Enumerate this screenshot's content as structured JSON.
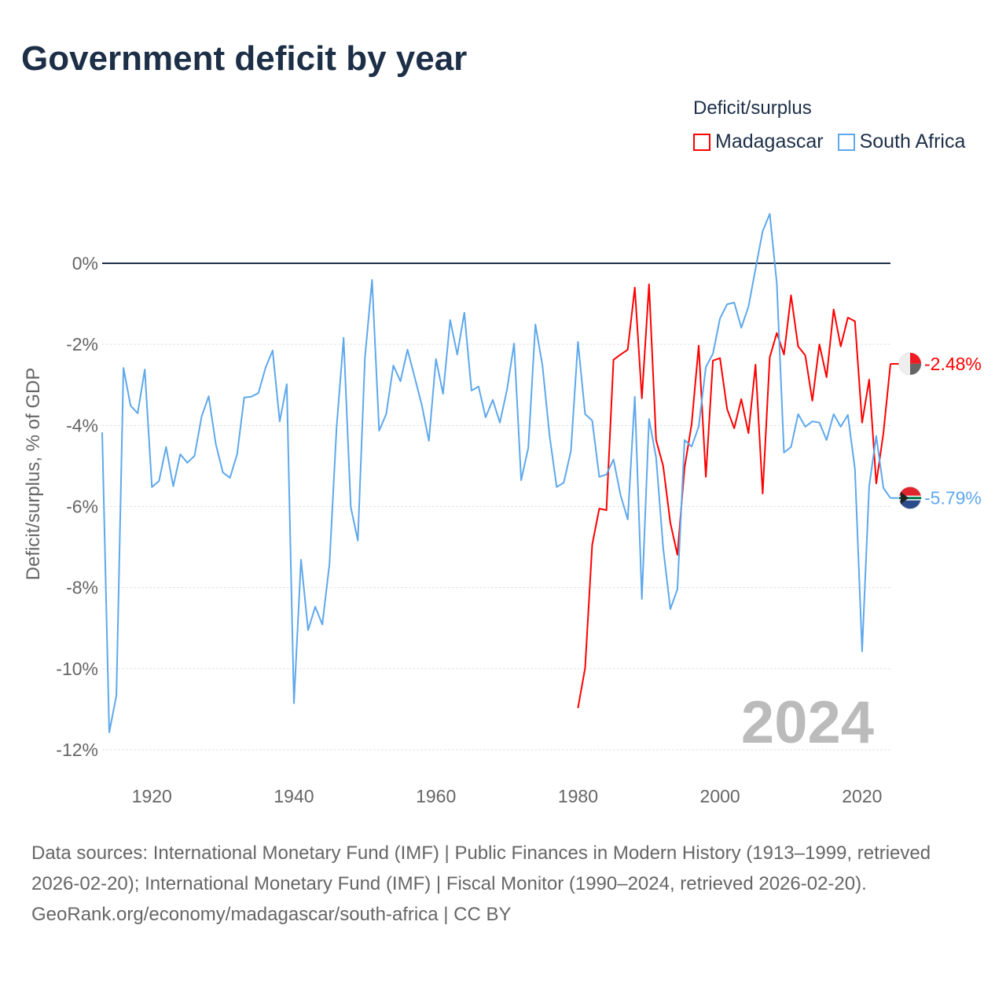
{
  "title": "Government deficit by year",
  "legend": {
    "title": "Deficit/surplus",
    "items": [
      {
        "name": "Madagascar",
        "color": "#ff0000"
      },
      {
        "name": "South Africa",
        "color": "#5ea8ec"
      }
    ]
  },
  "source": {
    "line1": "Data sources: International Monetary Fund (IMF) | Public Finances in Modern History (1913–1999, retrieved 2026-02-20); International Monetary Fund (IMF) | Fiscal Monitor (1990–2024, retrieved 2026-02-20).",
    "line2": "GeoRank.org/economy/madagascar/south-africa | CC BY"
  },
  "chart_data": {
    "type": "line",
    "title": "Government deficit by year",
    "xlabel": "",
    "ylabel": "Deficit/surplus, % of GDP",
    "xlim": [
      1913,
      2024
    ],
    "ylim": [
      -12,
      0
    ],
    "yticks": [
      0,
      -2,
      -4,
      -6,
      -8,
      -10,
      -12
    ],
    "ytick_labels": [
      "0%",
      "-2%",
      "-4%",
      "-6%",
      "-8%",
      "-10%",
      "-12%"
    ],
    "xticks": [
      1920,
      1940,
      1960,
      1980,
      2000,
      2020
    ],
    "year_overlay": "2024",
    "series": [
      {
        "name": "Madagascar",
        "color": "#ff0000",
        "start_year": 1980,
        "end_label": "-2.48%",
        "values": [
          -10.97,
          -9.98,
          -6.94,
          -6.05,
          -6.09,
          -2.38,
          -2.25,
          -2.13,
          -0.6,
          -3.33,
          -0.52,
          -4.36,
          -5.0,
          -6.4,
          -7.19,
          -5.04,
          -3.97,
          -2.03,
          -5.27,
          -2.4,
          -2.34,
          -3.6,
          -4.07,
          -3.35,
          -4.19,
          -2.5,
          -5.68,
          -2.32,
          -1.72,
          -2.25,
          -0.79,
          -2.05,
          -2.27,
          -3.39,
          -2.0,
          -2.81,
          -1.14,
          -2.05,
          -1.34,
          -1.43,
          -3.93,
          -2.87,
          -5.43,
          -4.19,
          -2.48
        ]
      },
      {
        "name": "South Africa",
        "color": "#5ea8ec",
        "start_year": 1913,
        "end_label": "-5.79%",
        "values": [
          -4.17,
          -11.57,
          -10.66,
          -2.58,
          -3.51,
          -3.7,
          -2.62,
          -5.52,
          -5.37,
          -4.53,
          -5.5,
          -4.71,
          -4.92,
          -4.75,
          -3.78,
          -3.28,
          -4.46,
          -5.16,
          -5.29,
          -4.71,
          -3.31,
          -3.29,
          -3.2,
          -2.58,
          -2.15,
          -3.9,
          -2.98,
          -10.85,
          -7.31,
          -9.05,
          -8.47,
          -8.91,
          -7.42,
          -4.07,
          -1.84,
          -6.01,
          -6.84,
          -2.34,
          -0.41,
          -4.13,
          -3.72,
          -2.52,
          -2.91,
          -2.13,
          -2.81,
          -3.49,
          -4.38,
          -2.36,
          -3.22,
          -1.4,
          -2.25,
          -1.22,
          -3.14,
          -3.04,
          -3.8,
          -3.37,
          -3.93,
          -3.12,
          -1.98,
          -5.35,
          -4.55,
          -1.51,
          -2.52,
          -4.26,
          -5.52,
          -5.41,
          -4.63,
          -1.94,
          -3.72,
          -3.88,
          -5.27,
          -5.21,
          -4.84,
          -5.72,
          -6.32,
          -3.29,
          -8.28,
          -3.84,
          -4.79,
          -7.02,
          -8.53,
          -8.04,
          -4.36,
          -4.52,
          -4.03,
          -2.56,
          -2.23,
          -1.36,
          -1.01,
          -0.97,
          -1.59,
          -1.07,
          -0.14,
          0.79,
          1.22,
          -0.5,
          -4.67,
          -4.53,
          -3.72,
          -4.03,
          -3.9,
          -3.93,
          -4.36,
          -3.72,
          -4.03,
          -3.74,
          -5.08,
          -9.57,
          -5.5,
          -4.26,
          -5.54,
          -5.79
        ]
      }
    ]
  }
}
